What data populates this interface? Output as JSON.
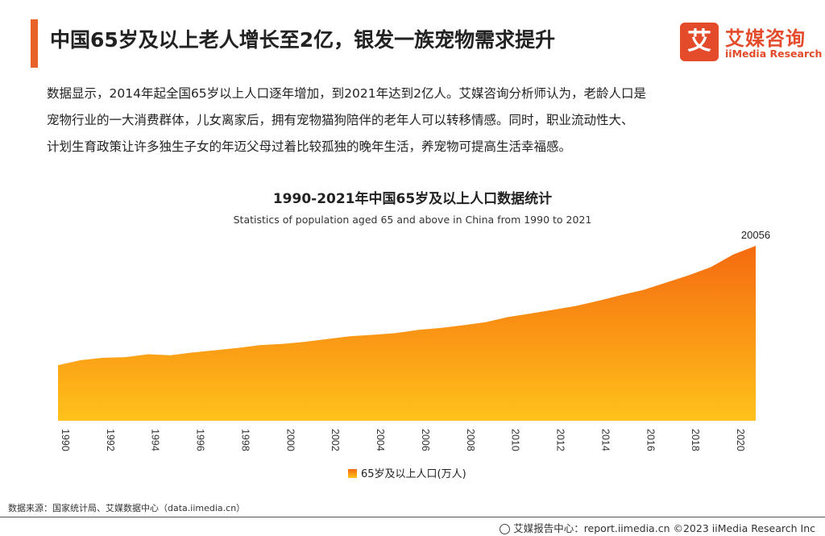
{
  "header": {
    "title": "中国65岁及以上老人增长至2亿，银发一族宠物需求提升",
    "logo_mark": "艾",
    "logo_cn": "艾媒咨询",
    "logo_en": "iiMedia Research"
  },
  "intro": {
    "lines": [
      "数据显示，2014年起全国65岁以上人口逐年增加，到2021年达到2亿人。艾媒咨询分析师认为，老龄人口是",
      "宠物行业的一大消费群体，儿女离家后，拥有宠物猫狗陪伴的老年人可以转移情感。同时，职业流动性大、",
      "计划生育政策让许多独生子女的年迈父母过着比较孤独的晚年生活，养宠物可提高生活幸福感。"
    ]
  },
  "colors": {
    "accent": "#e8622a",
    "area_top": "#f56a10",
    "area_bottom": "#ffc21a"
  },
  "chart_data": {
    "type": "area",
    "title": "1990-2021年中国65岁及以上人口数据统计",
    "subtitle": "Statistics of population aged 65 and above in China from 1990 to 2021",
    "x": [
      1990,
      1991,
      1992,
      1993,
      1994,
      1995,
      1996,
      1997,
      1998,
      1999,
      2000,
      2001,
      2002,
      2003,
      2004,
      2005,
      2006,
      2007,
      2008,
      2009,
      2010,
      2011,
      2012,
      2013,
      2014,
      2015,
      2016,
      2017,
      2018,
      2019,
      2020,
      2021
    ],
    "x_tick_labels": [
      "1990",
      "1992",
      "1994",
      "1996",
      "1998",
      "2000",
      "2002",
      "2004",
      "2006",
      "2008",
      "2010",
      "2012",
      "2014",
      "2016",
      "2018",
      "2020"
    ],
    "series": [
      {
        "name": "65岁及以上人口(万人)",
        "values": [
          6368,
          6938,
          7218,
          7289,
          7622,
          7510,
          7833,
          8085,
          8359,
          8679,
          8821,
          9062,
          9377,
          9692,
          9857,
          10055,
          10419,
          10636,
          10956,
          11307,
          11894,
          12288,
          12714,
          13161,
          13755,
          14386,
          15003,
          15831,
          16658,
          17603,
          19064,
          20056
        ]
      }
    ],
    "annotations": [
      "20056"
    ],
    "ylim": [
      0,
      20056
    ],
    "grid": false,
    "legend": "bottom-center"
  },
  "footer": {
    "source": "数据来源：国家统计局、艾媒数据中心（data.iimedia.cn）",
    "report": "艾媒报告中心：report.iimedia.cn   ©2023  iiMedia Research Inc"
  }
}
